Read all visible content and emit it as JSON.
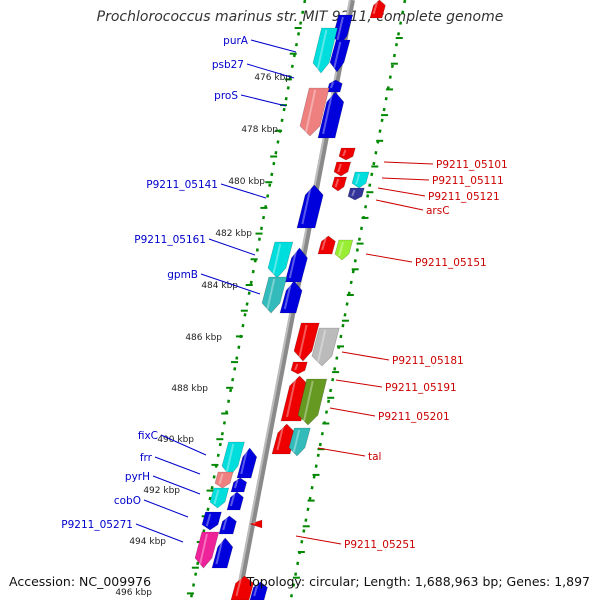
{
  "title": "Prochlorococcus marinus str. MIT 9211, complete genome",
  "accession_text": "Accession: NC_009976",
  "topology_text": "Topology: circular; Length: 1,688,963 bp; Genes: 1,897",
  "colors": {
    "dark_blue": "#0000dd",
    "red": "#ee0000",
    "cyan": "#00dddd",
    "teal": "#33bbbb",
    "salmon": "#ee8080",
    "magenta": "#ee2299",
    "olive": "#669922",
    "lime": "#99ee33",
    "gray": "#bbbbbb",
    "navy": "#333399",
    "tick_green": "#008800",
    "label_blue": "#0000cc",
    "label_red": "#cc0000"
  },
  "kbp_ticks": [
    "476 kbp",
    "478 kbp",
    "480 kbp",
    "482 kbp",
    "484 kbp",
    "486 kbp",
    "488 kbp",
    "490 kbp",
    "492 kbp",
    "494 kbp",
    "496 kbp"
  ],
  "left_genes": [
    "purA",
    "psb27",
    "proS",
    "P9211_05141",
    "P9211_05161",
    "gpmB",
    "fixC",
    "frr",
    "pyrH",
    "cobO",
    "P9211_05271"
  ],
  "right_genes": [
    "P9211_05101",
    "P9211_05111",
    "P9211_05121",
    "arsC",
    "P9211_05151",
    "P9211_05181",
    "P9211_05191",
    "P9211_05201",
    "tal",
    "P9211_05251"
  ]
}
